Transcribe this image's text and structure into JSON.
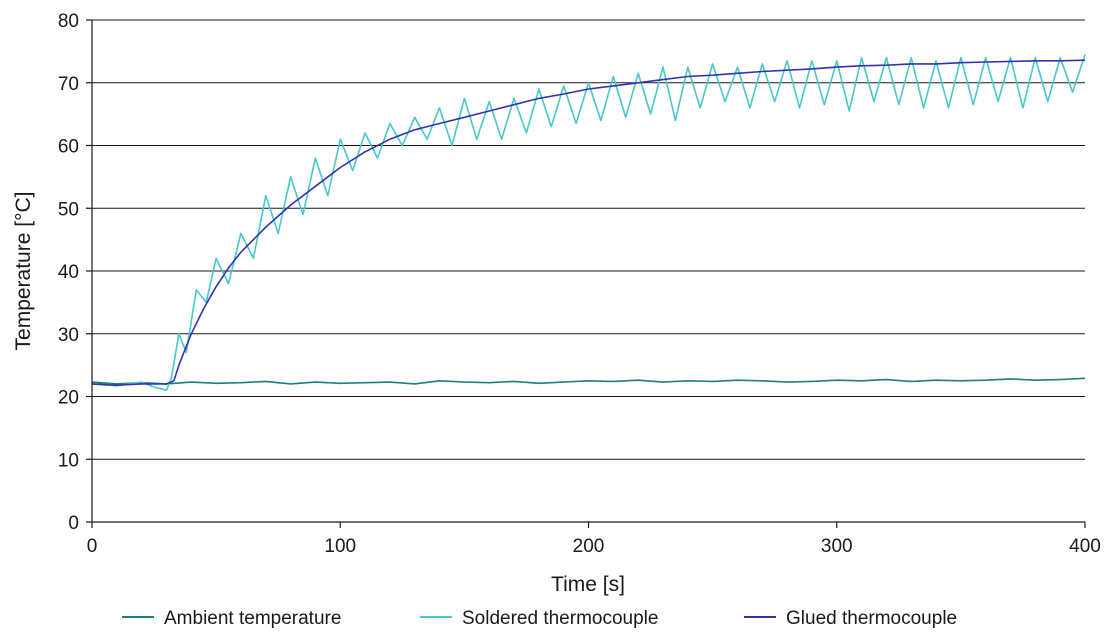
{
  "chart_data": {
    "type": "line",
    "title": "",
    "xlabel": "Time [s]",
    "ylabel": "Temperature [°C]",
    "xlim": [
      0,
      400
    ],
    "ylim": [
      0,
      80
    ],
    "xticks": [
      0,
      100,
      200,
      300,
      400
    ],
    "yticks": [
      0,
      10,
      20,
      30,
      40,
      50,
      60,
      70,
      80
    ],
    "grid": "horizontal",
    "legend_position": "bottom",
    "series": [
      {
        "name": "Ambient temperature",
        "color": "#1f7f7a",
        "x": [
          0,
          10,
          20,
          30,
          40,
          50,
          60,
          70,
          80,
          90,
          100,
          110,
          120,
          130,
          140,
          150,
          160,
          170,
          180,
          190,
          200,
          210,
          220,
          230,
          240,
          250,
          260,
          270,
          280,
          290,
          300,
          310,
          320,
          330,
          340,
          350,
          360,
          370,
          380,
          390,
          400
        ],
        "values": [
          22.3,
          22.0,
          22.2,
          22.0,
          22.3,
          22.1,
          22.2,
          22.4,
          22.0,
          22.3,
          22.1,
          22.2,
          22.3,
          22.0,
          22.5,
          22.3,
          22.2,
          22.4,
          22.1,
          22.3,
          22.5,
          22.4,
          22.6,
          22.3,
          22.5,
          22.4,
          22.6,
          22.5,
          22.3,
          22.4,
          22.6,
          22.5,
          22.7,
          22.4,
          22.6,
          22.5,
          22.6,
          22.8,
          22.6,
          22.7,
          22.9
        ]
      },
      {
        "name": "Soldered thermocouple",
        "color": "#48c8c8",
        "x": [
          0,
          10,
          20,
          25,
          30,
          32,
          35,
          38,
          42,
          46,
          50,
          55,
          60,
          65,
          70,
          75,
          80,
          85,
          90,
          95,
          100,
          105,
          110,
          115,
          120,
          125,
          130,
          135,
          140,
          145,
          150,
          155,
          160,
          165,
          170,
          175,
          180,
          185,
          190,
          195,
          200,
          205,
          210,
          215,
          220,
          225,
          230,
          235,
          240,
          245,
          250,
          255,
          260,
          265,
          270,
          275,
          280,
          285,
          290,
          295,
          300,
          305,
          310,
          315,
          320,
          325,
          330,
          335,
          340,
          345,
          350,
          355,
          360,
          365,
          370,
          375,
          380,
          385,
          390,
          395,
          400
        ],
        "values": [
          22.0,
          21.7,
          22.3,
          21.5,
          21.0,
          23.0,
          30.0,
          27.0,
          37.0,
          35.0,
          42.0,
          38.0,
          46.0,
          42.0,
          52.0,
          46.0,
          55.0,
          49.0,
          58.0,
          52.0,
          61.0,
          56.0,
          62.0,
          58.0,
          63.5,
          60.0,
          64.5,
          61.0,
          66.0,
          60.0,
          67.5,
          61.0,
          67.0,
          61.0,
          67.5,
          62.0,
          69.0,
          63.0,
          69.5,
          63.5,
          70.0,
          64.0,
          71.0,
          64.5,
          71.5,
          65.0,
          72.5,
          64.0,
          72.5,
          66.0,
          73.0,
          67.0,
          72.5,
          66.0,
          73.0,
          67.0,
          73.5,
          66.0,
          73.5,
          66.5,
          73.5,
          65.5,
          74.0,
          67.0,
          74.0,
          66.5,
          74.0,
          66.0,
          73.5,
          66.0,
          74.0,
          66.5,
          74.0,
          67.0,
          74.0,
          66.0,
          74.0,
          67.0,
          74.0,
          68.5,
          74.5
        ]
      },
      {
        "name": "Glued thermocouple",
        "color": "#3333b0",
        "x": [
          0,
          10,
          20,
          30,
          33,
          35,
          40,
          45,
          50,
          55,
          60,
          70,
          80,
          90,
          100,
          110,
          120,
          130,
          140,
          150,
          160,
          170,
          180,
          190,
          200,
          210,
          220,
          230,
          240,
          250,
          260,
          270,
          280,
          290,
          300,
          310,
          320,
          330,
          340,
          350,
          360,
          370,
          380,
          390,
          400
        ],
        "values": [
          22.0,
          21.8,
          22.0,
          22.0,
          22.5,
          25.0,
          30.0,
          34.0,
          37.5,
          40.5,
          43.0,
          47.0,
          50.5,
          53.5,
          56.5,
          59.0,
          61.0,
          62.5,
          63.5,
          64.5,
          65.5,
          66.5,
          67.5,
          68.2,
          69.0,
          69.5,
          70.0,
          70.5,
          71.0,
          71.2,
          71.5,
          71.8,
          72.0,
          72.2,
          72.5,
          72.7,
          72.8,
          73.0,
          73.0,
          73.2,
          73.3,
          73.4,
          73.5,
          73.5,
          73.6
        ]
      }
    ]
  }
}
